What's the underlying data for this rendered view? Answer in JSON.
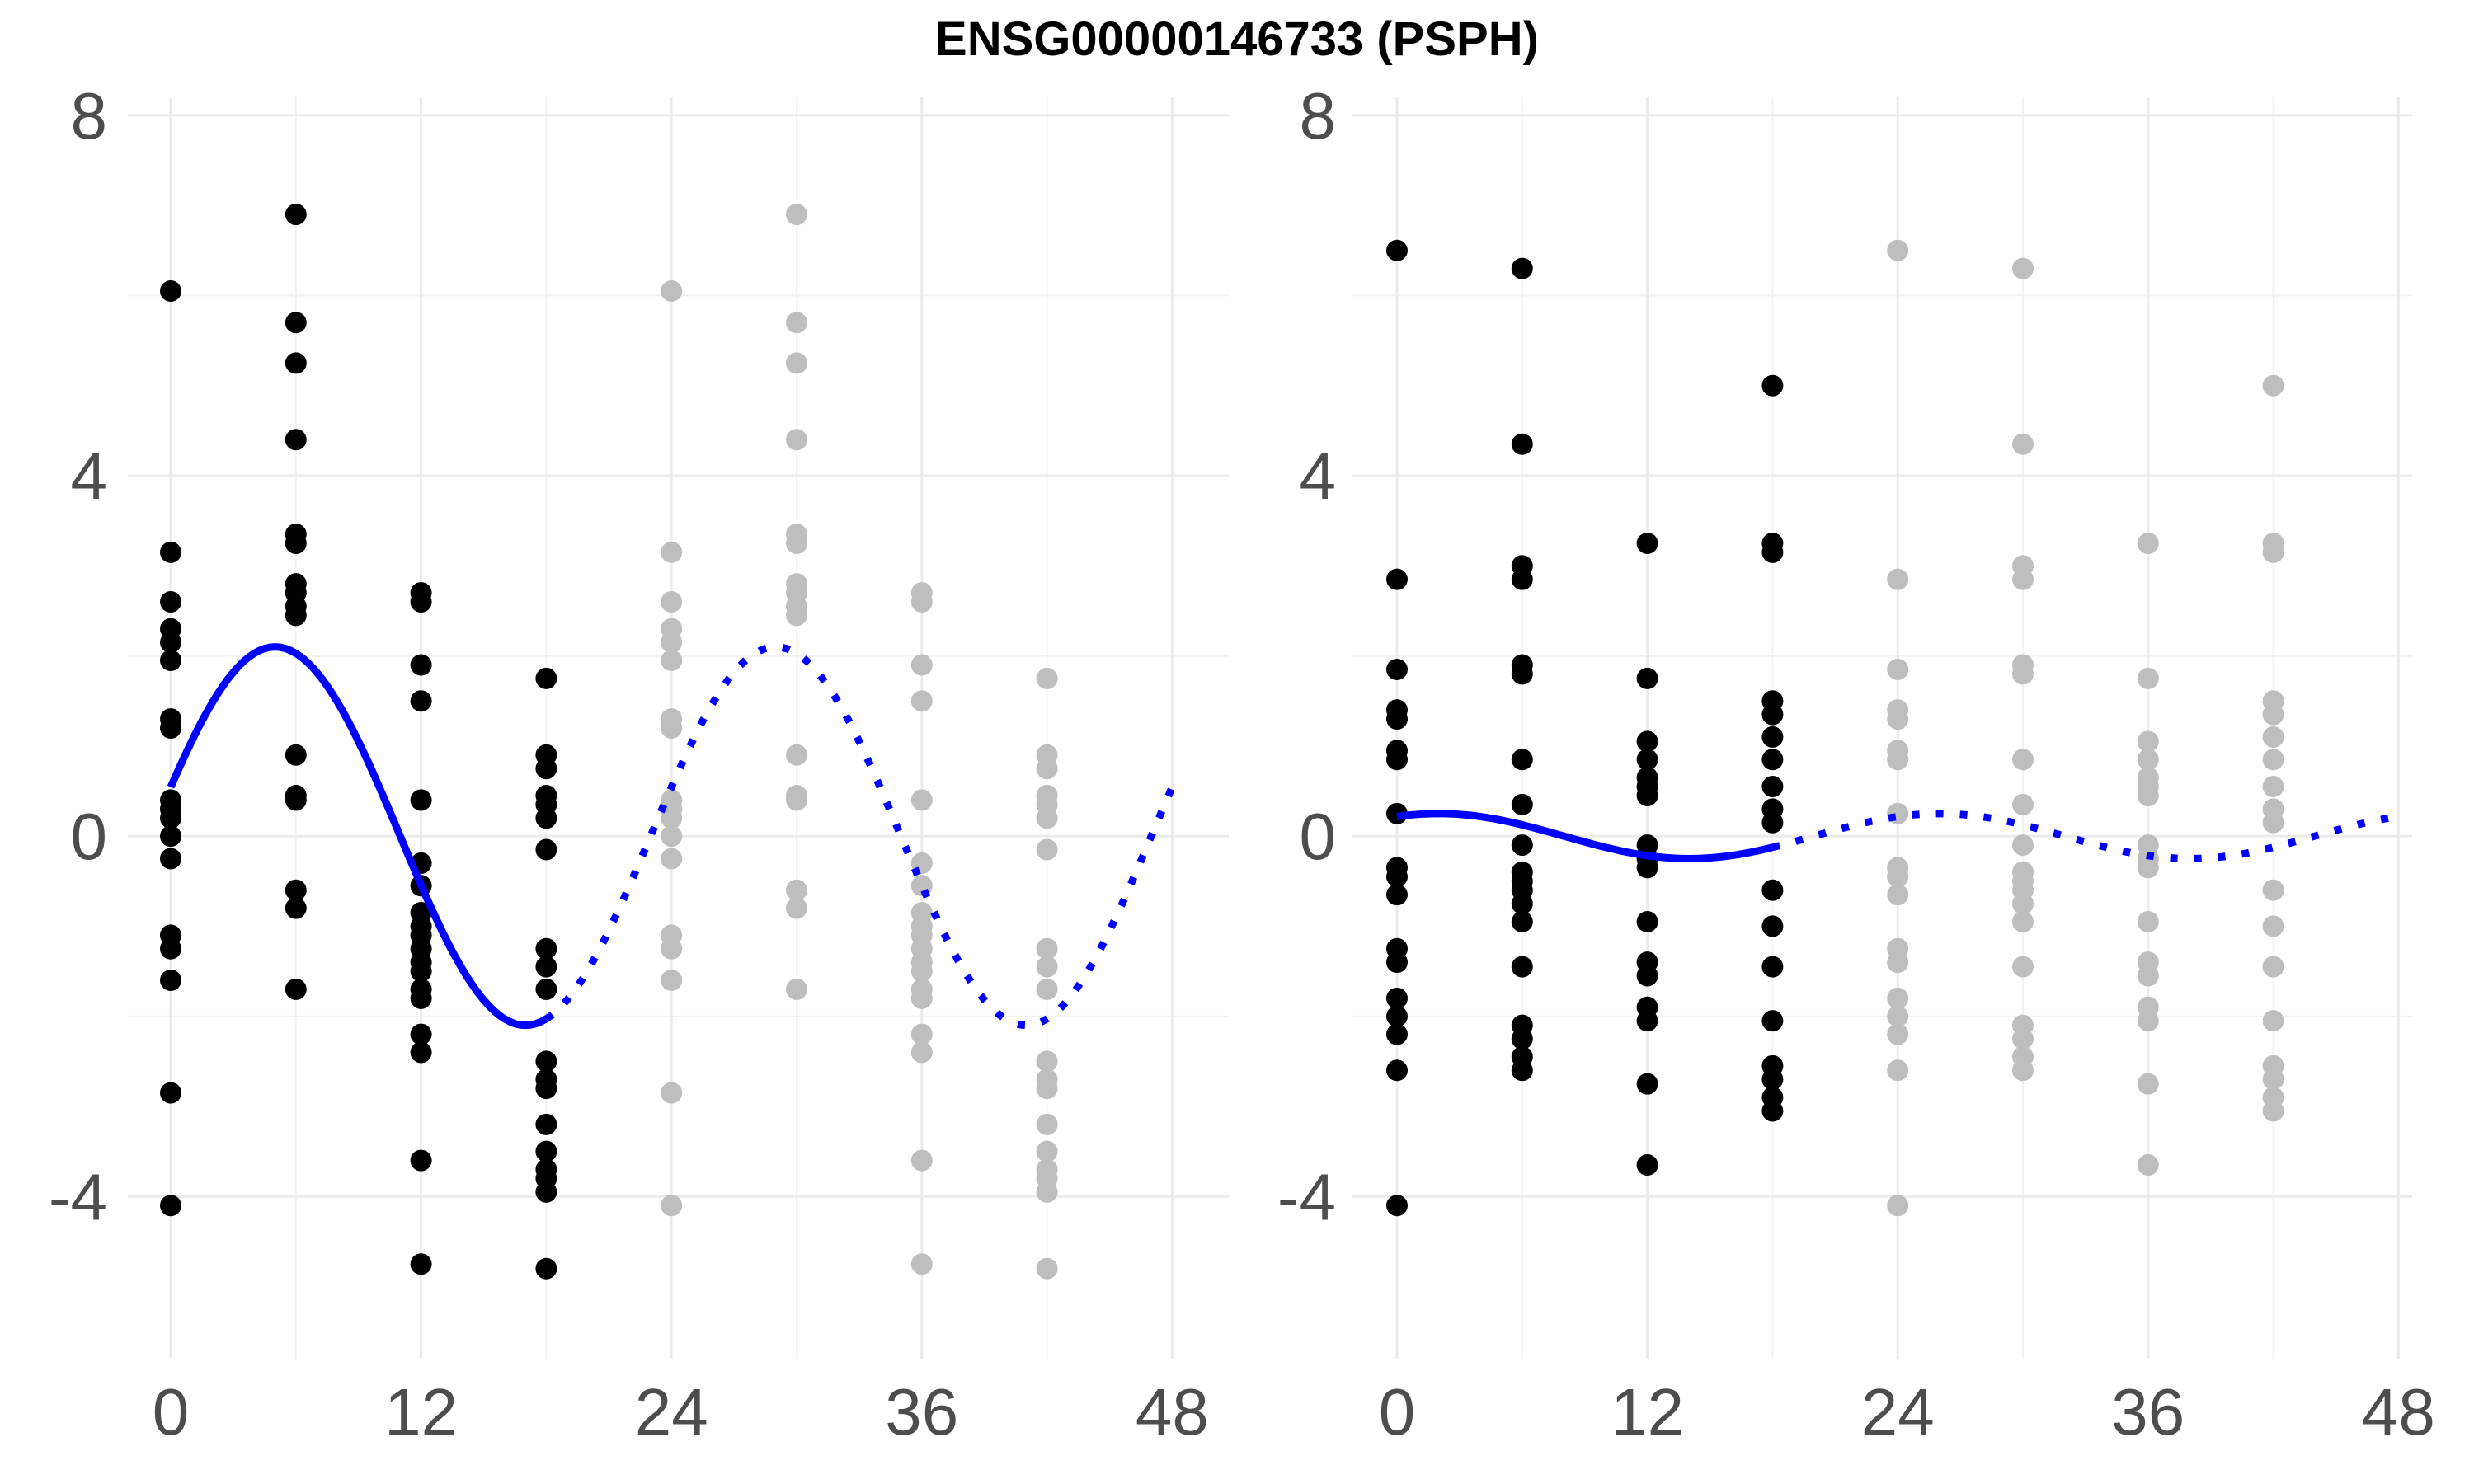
{
  "chart_data": {
    "title": "ENSG00000146733 (PSPH)",
    "type": "scatter",
    "x_ticks": [
      0,
      12,
      24,
      36,
      48
    ],
    "y_ticks": [
      8,
      4,
      0,
      -4
    ],
    "xlim": [
      0,
      48
    ],
    "ylim": [
      -5.8,
      8.2
    ],
    "colors": {
      "observed": "#000000",
      "replicated": "#bebebe",
      "fit": "#0000ff"
    },
    "panels": [
      {
        "name": "left",
        "observed_points": [
          [
            0,
            6.05
          ],
          [
            0,
            3.15
          ],
          [
            0,
            2.6
          ],
          [
            0,
            2.3
          ],
          [
            0,
            2.15
          ],
          [
            0,
            1.95
          ],
          [
            0,
            1.3
          ],
          [
            0,
            1.2
          ],
          [
            0,
            0.4
          ],
          [
            0,
            0.3
          ],
          [
            0,
            0.2
          ],
          [
            0,
            0
          ],
          [
            0,
            -0.25
          ],
          [
            0,
            -1.1
          ],
          [
            0,
            -1.25
          ],
          [
            0,
            -1.6
          ],
          [
            0,
            -2.85
          ],
          [
            0,
            -4.1
          ],
          [
            6,
            6.9
          ],
          [
            6,
            5.7
          ],
          [
            6,
            5.25
          ],
          [
            6,
            4.4
          ],
          [
            6,
            3.35
          ],
          [
            6,
            3.25
          ],
          [
            6,
            2.8
          ],
          [
            6,
            2.7
          ],
          [
            6,
            2.55
          ],
          [
            6,
            2.45
          ],
          [
            6,
            0.9
          ],
          [
            6,
            0.45
          ],
          [
            6,
            0.4
          ],
          [
            6,
            -0.6
          ],
          [
            6,
            -0.8
          ],
          [
            6,
            -1.7
          ],
          [
            12,
            2.7
          ],
          [
            12,
            2.6
          ],
          [
            12,
            1.9
          ],
          [
            12,
            1.5
          ],
          [
            12,
            0.4
          ],
          [
            12,
            -0.3
          ],
          [
            12,
            -0.55
          ],
          [
            12,
            -0.85
          ],
          [
            12,
            -1.0
          ],
          [
            12,
            -1.1
          ],
          [
            12,
            -1.25
          ],
          [
            12,
            -1.4
          ],
          [
            12,
            -1.5
          ],
          [
            12,
            -1.7
          ],
          [
            12,
            -1.8
          ],
          [
            12,
            -2.2
          ],
          [
            12,
            -2.4
          ],
          [
            12,
            -3.6
          ],
          [
            12,
            -4.75
          ],
          [
            18,
            1.75
          ],
          [
            18,
            0.9
          ],
          [
            18,
            0.75
          ],
          [
            18,
            0.45
          ],
          [
            18,
            0.35
          ],
          [
            18,
            0.2
          ],
          [
            18,
            -0.15
          ],
          [
            18,
            -1.25
          ],
          [
            18,
            -1.45
          ],
          [
            18,
            -1.7
          ],
          [
            18,
            -2.5
          ],
          [
            18,
            -2.7
          ],
          [
            18,
            -2.8
          ],
          [
            18,
            -3.2
          ],
          [
            18,
            -3.5
          ],
          [
            18,
            -3.7
          ],
          [
            18,
            -3.8
          ],
          [
            18,
            -3.95
          ],
          [
            18,
            -4.8
          ]
        ],
        "fit": {
          "mean": 0,
          "amplitude": 2.1,
          "peak": 5,
          "period": 24
        },
        "fit_solid_to": 18
      },
      {
        "name": "right",
        "observed_points": [
          [
            0,
            6.5
          ],
          [
            0,
            2.85
          ],
          [
            0,
            1.85
          ],
          [
            0,
            1.4
          ],
          [
            0,
            1.3
          ],
          [
            0,
            0.95
          ],
          [
            0,
            0.85
          ],
          [
            0,
            0.25
          ],
          [
            0,
            -0.35
          ],
          [
            0,
            -0.45
          ],
          [
            0,
            -0.65
          ],
          [
            0,
            -1.25
          ],
          [
            0,
            -1.4
          ],
          [
            0,
            -1.8
          ],
          [
            0,
            -2.0
          ],
          [
            0,
            -2.2
          ],
          [
            0,
            -2.6
          ],
          [
            0,
            -4.1
          ],
          [
            6,
            6.3
          ],
          [
            6,
            4.35
          ],
          [
            6,
            3.0
          ],
          [
            6,
            2.85
          ],
          [
            6,
            1.9
          ],
          [
            6,
            1.8
          ],
          [
            6,
            0.85
          ],
          [
            6,
            0.35
          ],
          [
            6,
            -0.1
          ],
          [
            6,
            -0.4
          ],
          [
            6,
            -0.5
          ],
          [
            6,
            -0.6
          ],
          [
            6,
            -0.75
          ],
          [
            6,
            -0.95
          ],
          [
            6,
            -1.45
          ],
          [
            6,
            -2.1
          ],
          [
            6,
            -2.25
          ],
          [
            6,
            -2.45
          ],
          [
            6,
            -2.6
          ],
          [
            12,
            3.25
          ],
          [
            12,
            1.75
          ],
          [
            12,
            1.05
          ],
          [
            12,
            0.85
          ],
          [
            12,
            0.65
          ],
          [
            12,
            0.55
          ],
          [
            12,
            0.45
          ],
          [
            12,
            -0.1
          ],
          [
            12,
            -0.25
          ],
          [
            12,
            -0.35
          ],
          [
            12,
            -0.95
          ],
          [
            12,
            -1.4
          ],
          [
            12,
            -1.55
          ],
          [
            12,
            -1.9
          ],
          [
            12,
            -2.05
          ],
          [
            12,
            -2.75
          ],
          [
            12,
            -3.65
          ],
          [
            18,
            5.0
          ],
          [
            18,
            3.25
          ],
          [
            18,
            3.15
          ],
          [
            18,
            1.5
          ],
          [
            18,
            1.35
          ],
          [
            18,
            1.1
          ],
          [
            18,
            0.85
          ],
          [
            18,
            0.55
          ],
          [
            18,
            0.3
          ],
          [
            18,
            0.15
          ],
          [
            18,
            -0.6
          ],
          [
            18,
            -1.0
          ],
          [
            18,
            -1.45
          ],
          [
            18,
            -2.05
          ],
          [
            18,
            -2.55
          ],
          [
            18,
            -2.7
          ],
          [
            18,
            -2.9
          ],
          [
            18,
            -3.05
          ]
        ],
        "fit": {
          "mean": 0,
          "amplitude": 0.25,
          "peak": 2,
          "period": 24
        },
        "fit_solid_to": 18
      }
    ]
  }
}
